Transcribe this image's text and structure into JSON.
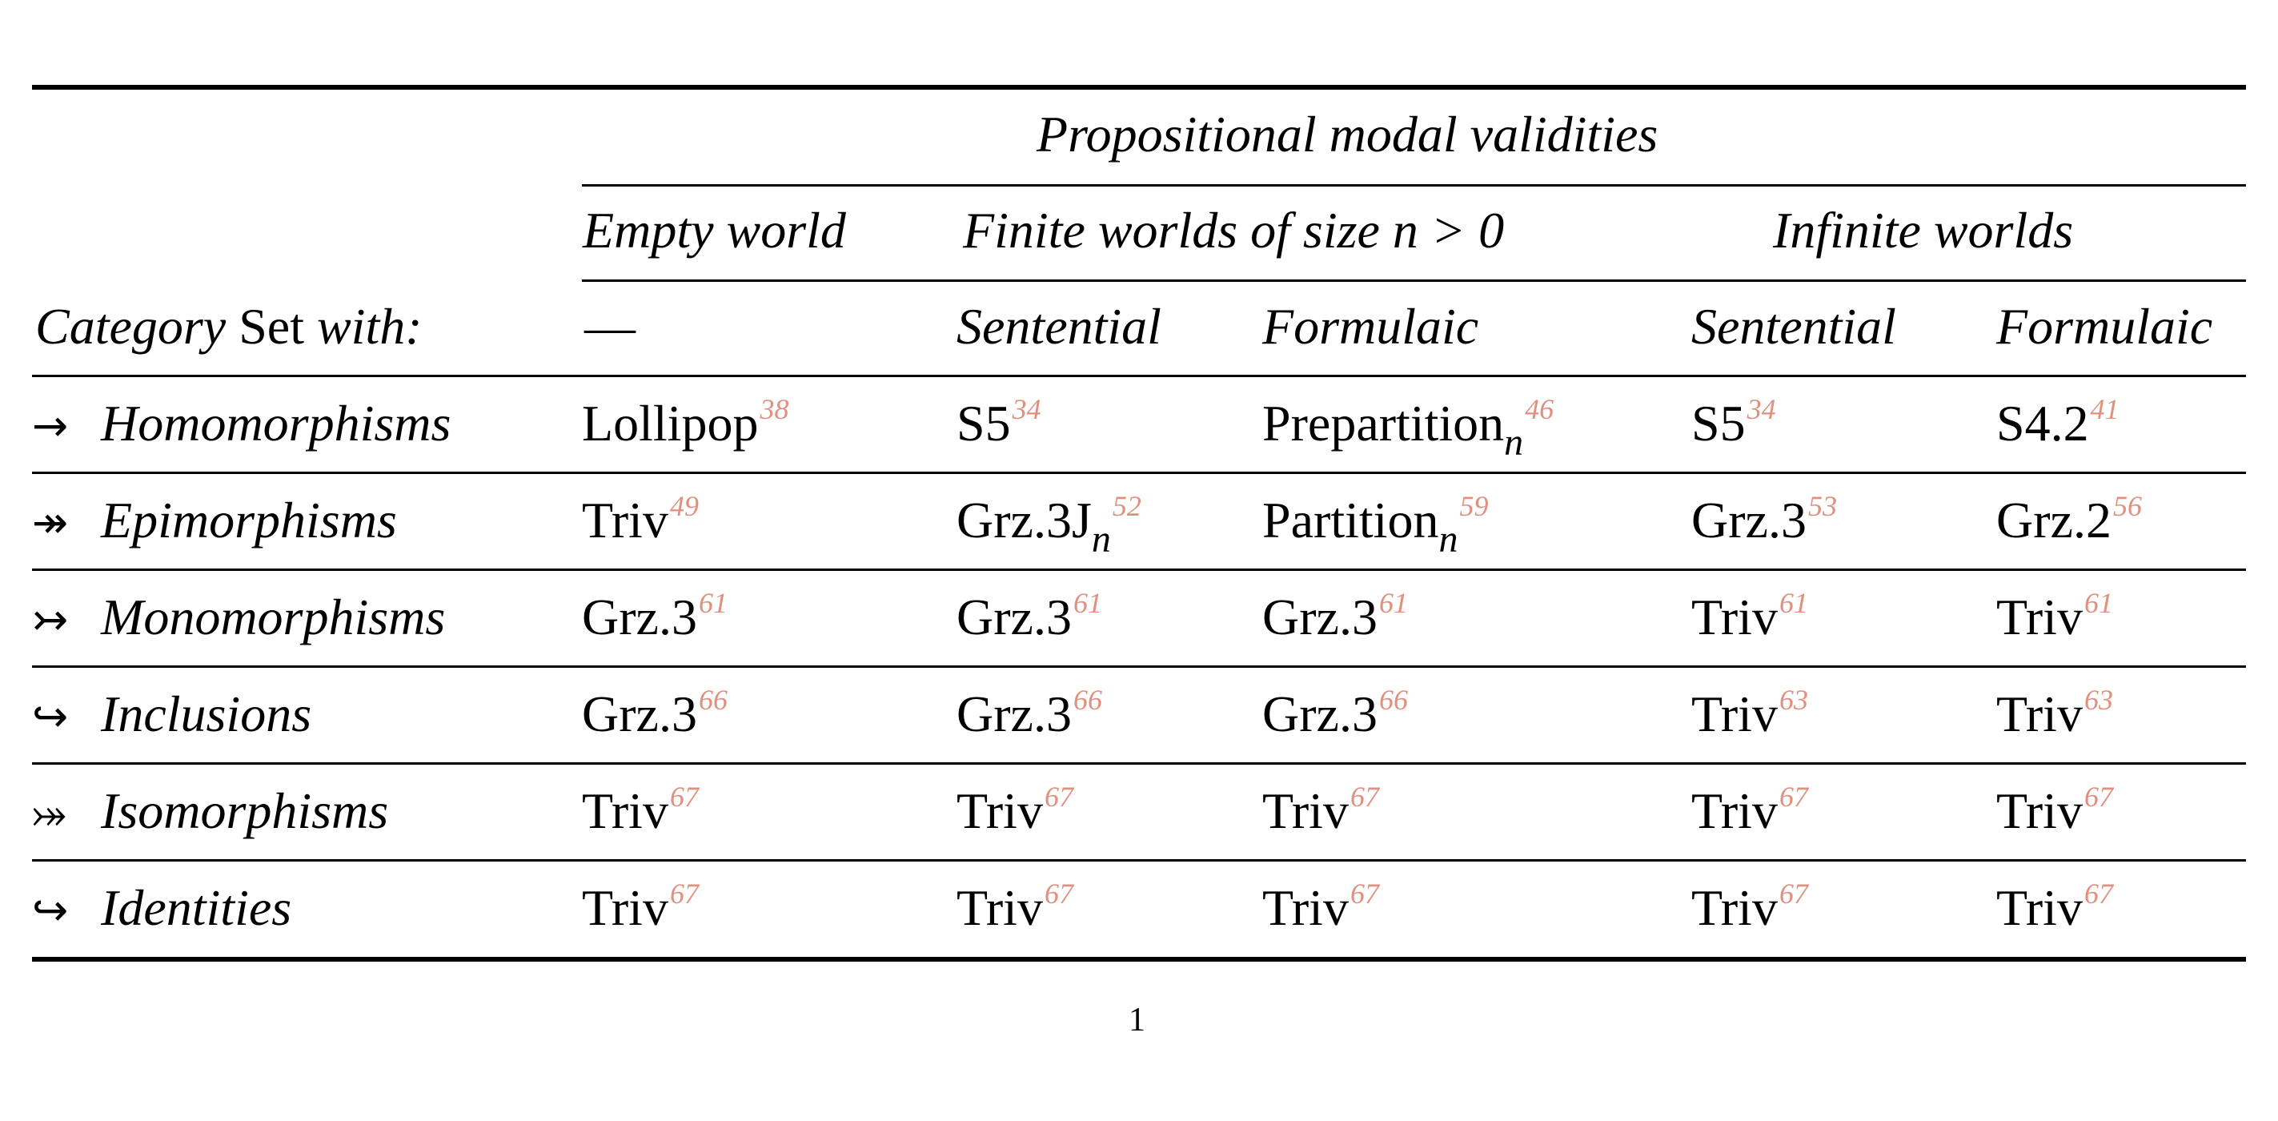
{
  "table": {
    "super_header": "Propositional modal validities",
    "group_headers": {
      "empty": "Empty world",
      "finite": "Finite worlds of size n > 0",
      "infinite": "Infinite worlds"
    },
    "corner_label": {
      "category": "Category",
      "set": "Set",
      "with": "with:"
    },
    "sub_headers": [
      "—",
      "Sentential",
      "Formulaic",
      "Sentential",
      "Formulaic"
    ],
    "rows": [
      {
        "arrow": "→",
        "label": "Homomorphisms",
        "cells": [
          {
            "text": "Lollipop",
            "sub": "",
            "ref": "38"
          },
          {
            "text": "S5",
            "sub": "",
            "ref": "34"
          },
          {
            "text": "Prepartition",
            "sub": "n",
            "ref": "46"
          },
          {
            "text": "S5",
            "sub": "",
            "ref": "34"
          },
          {
            "text": "S4.2",
            "sub": "",
            "ref": "41"
          }
        ]
      },
      {
        "arrow": "↠",
        "label": "Epimorphisms",
        "cells": [
          {
            "text": "Triv",
            "sub": "",
            "ref": "49"
          },
          {
            "text": "Grz.3J",
            "sub": "n",
            "ref": "52"
          },
          {
            "text": "Partition",
            "sub": "n",
            "ref": "59"
          },
          {
            "text": "Grz.3",
            "sub": "",
            "ref": "53"
          },
          {
            "text": "Grz.2",
            "sub": "",
            "ref": "56"
          }
        ]
      },
      {
        "arrow": "↣",
        "label": "Monomorphisms",
        "cells": [
          {
            "text": "Grz.3",
            "sub": "",
            "ref": "61"
          },
          {
            "text": "Grz.3",
            "sub": "",
            "ref": "61"
          },
          {
            "text": "Grz.3",
            "sub": "",
            "ref": "61"
          },
          {
            "text": "Triv",
            "sub": "",
            "ref": "61"
          },
          {
            "text": "Triv",
            "sub": "",
            "ref": "61"
          }
        ]
      },
      {
        "arrow": "↪",
        "label": "Inclusions",
        "cells": [
          {
            "text": "Grz.3",
            "sub": "",
            "ref": "66"
          },
          {
            "text": "Grz.3",
            "sub": "",
            "ref": "66"
          },
          {
            "text": "Grz.3",
            "sub": "",
            "ref": "66"
          },
          {
            "text": "Triv",
            "sub": "",
            "ref": "63"
          },
          {
            "text": "Triv",
            "sub": "",
            "ref": "63"
          }
        ]
      },
      {
        "arrow": "⤖",
        "label": "Isomorphisms",
        "cells": [
          {
            "text": "Triv",
            "sub": "",
            "ref": "67"
          },
          {
            "text": "Triv",
            "sub": "",
            "ref": "67"
          },
          {
            "text": "Triv",
            "sub": "",
            "ref": "67"
          },
          {
            "text": "Triv",
            "sub": "",
            "ref": "67"
          },
          {
            "text": "Triv",
            "sub": "",
            "ref": "67"
          }
        ]
      },
      {
        "arrow": "↪",
        "label": "Identities",
        "cells": [
          {
            "text": "Triv",
            "sub": "",
            "ref": "67"
          },
          {
            "text": "Triv",
            "sub": "",
            "ref": "67"
          },
          {
            "text": "Triv",
            "sub": "",
            "ref": "67"
          },
          {
            "text": "Triv",
            "sub": "",
            "ref": "67"
          },
          {
            "text": "Triv",
            "sub": "",
            "ref": "67"
          }
        ]
      }
    ]
  },
  "page_number": "1",
  "colors": {
    "reference": "#E0907F",
    "text": "#000000",
    "rule": "#000000"
  }
}
